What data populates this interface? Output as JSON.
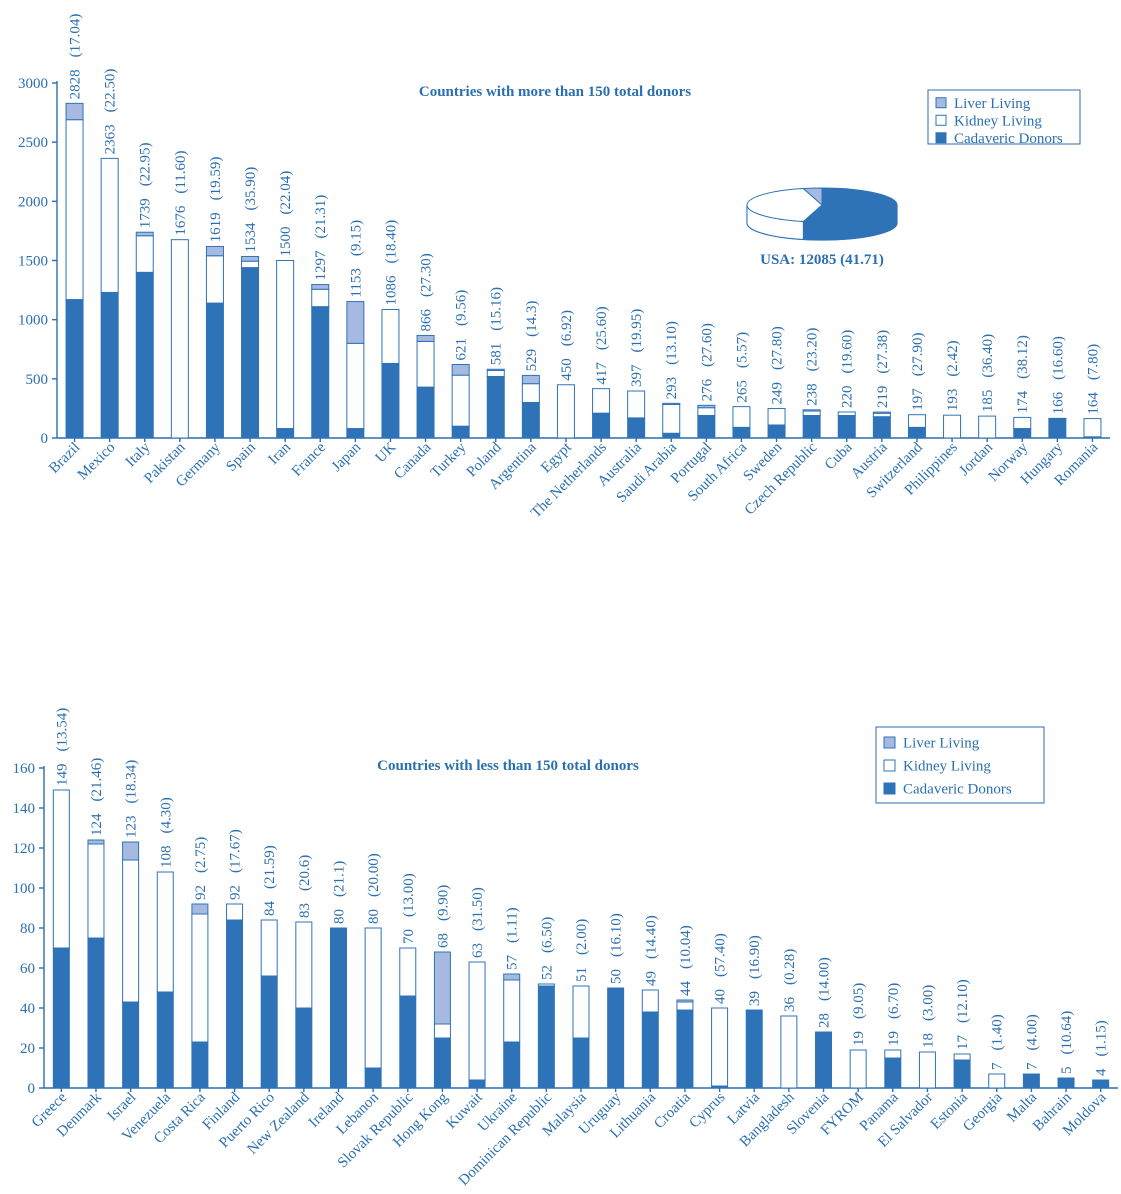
{
  "colors": {
    "cadaveric": "#2e73b8",
    "kidney": "#ffffff",
    "liver": "#a6b9e0",
    "ink": "#2a6fb0"
  },
  "chart_data": [
    {
      "type": "bar",
      "stacked": true,
      "title": "Countries with more than 150 total donors",
      "legend": [
        "Liver Living",
        "Kidney Living",
        "Cadaveric Donors"
      ],
      "legend_position": "top-right",
      "ylim": [
        0,
        3000
      ],
      "yticks": [
        0,
        500,
        1000,
        1500,
        2000,
        2500,
        3000
      ],
      "categories": [
        "Brazil",
        "Mexico",
        "Italy",
        "Pakistan",
        "Germany",
        "Spain",
        "Iran",
        "France",
        "Japan",
        "UK",
        "Canada",
        "Turkey",
        "Poland",
        "Argentina",
        "Egypt",
        "The Netherlands",
        "Australia",
        "Saudi Arabia",
        "Portugal",
        "South Africa",
        "Sweden",
        "Czech Republic",
        "Cuba",
        "Austria",
        "Switzerland",
        "Philippines",
        "Jordan",
        "Norway",
        "Hungary",
        "Romania"
      ],
      "totals": [
        "2828",
        "2363",
        "1739",
        "1676",
        "1619",
        "1534",
        "1500",
        "1297",
        "1153",
        "1086",
        "866",
        "621",
        "581",
        "529",
        "450",
        "417",
        "397",
        "293",
        "276",
        "265",
        "249",
        "238",
        "220",
        "219",
        "197",
        "193",
        "185",
        "174",
        "166",
        "164"
      ],
      "rates": [
        "(17.04)",
        "(22.50)",
        "(22.95)",
        "(11.60)",
        "(19.59)",
        "(35.90)",
        "(22.04)",
        "(21.31)",
        "(9.15)",
        "(18.40)",
        "(27.30)",
        "(9.56)",
        "(15.16)",
        "(14.3)",
        "(6.92)",
        "(25.60)",
        "(19.95)",
        "(13.10)",
        "(27.60)",
        "(5.57)",
        "(27.80)",
        "(23.20)",
        "(19.60)",
        "(27.38)",
        "(27.90)",
        "(2.42)",
        "(36.40)",
        "(38.12)",
        "(16.60)",
        "(7.80)"
      ],
      "series": [
        {
          "name": "Cadaveric Donors",
          "values": [
            1170,
            1230,
            1400,
            0,
            1140,
            1440,
            80,
            1110,
            80,
            630,
            430,
            100,
            520,
            300,
            0,
            210,
            170,
            40,
            190,
            90,
            110,
            190,
            190,
            180,
            90,
            0,
            0,
            80,
            160,
            10
          ]
        },
        {
          "name": "Kidney Living",
          "values": [
            1520,
            1133,
            309,
            1676,
            400,
            54,
            1420,
            147,
            720,
            456,
            386,
            431,
            51,
            159,
            450,
            207,
            227,
            243,
            66,
            175,
            139,
            38,
            30,
            29,
            107,
            193,
            185,
            94,
            6,
            154
          ]
        },
        {
          "name": "Liver Living",
          "values": [
            138,
            0,
            30,
            0,
            79,
            40,
            0,
            40,
            353,
            0,
            50,
            90,
            10,
            70,
            0,
            0,
            0,
            10,
            20,
            0,
            0,
            10,
            0,
            10,
            0,
            0,
            0,
            0,
            0,
            0
          ]
        }
      ],
      "inset_pie": {
        "label": "USA: 12085 (41.71)",
        "slices": [
          {
            "name": "Cadaveric Donors",
            "value": 0.54
          },
          {
            "name": "Kidney Living",
            "value": 0.42
          },
          {
            "name": "Liver Living",
            "value": 0.04
          }
        ]
      }
    },
    {
      "type": "bar",
      "stacked": true,
      "title": "Countries with less than 150 total donors",
      "legend": [
        "Liver Living",
        "Kidney Living",
        "Cadaveric Donors"
      ],
      "legend_position": "top-right",
      "ylim": [
        0,
        160
      ],
      "yticks": [
        0,
        20,
        40,
        60,
        80,
        100,
        120,
        140,
        160
      ],
      "categories": [
        "Greece",
        "Denmark",
        "Israel",
        "Venezuela",
        "Costa Rica",
        "Finland",
        "Puerto Rico",
        "New Zealand",
        "Ireland",
        "Lebanon",
        "Slovak Republic",
        "Hong Kong",
        "Kuwait",
        "Ukraine",
        "Dominican Republic",
        "Malaysia",
        "Uruguay",
        "Lithuania",
        "Croatia",
        "Cyprus",
        "Latvia",
        "Bangladesh",
        "Slovenia",
        "FYROM",
        "Panama",
        "El Salvador",
        "Estonia",
        "Georgia",
        "Malta",
        "Bahrain",
        "Moldova"
      ],
      "totals": [
        "149",
        "124",
        "123",
        "108",
        "92",
        "92",
        "84",
        "83",
        "80",
        "80",
        "70",
        "68",
        "63",
        "57",
        "52",
        "51",
        "50",
        "49",
        "44",
        "40",
        "39",
        "36",
        "28",
        "19",
        "19",
        "18",
        "17",
        "7",
        "7",
        "5",
        "4"
      ],
      "rates": [
        "(13.54)",
        "(21.46)",
        "(18.34)",
        "(4.30)",
        "(2.75)",
        "(17.67)",
        "(21.59)",
        "(20.6)",
        "(21.1)",
        "(20.00)",
        "(13.00)",
        "(9.90)",
        "(31.50)",
        "(1.11)",
        "(6.50)",
        "(2.00)",
        "(16.10)",
        "(14.40)",
        "(10.04)",
        "(57.40)",
        "(16.90)",
        "(0.28)",
        "(14.00)",
        "(9.05)",
        "(6.70)",
        "(3.00)",
        "(12.10)",
        "(1.40)",
        "(4.00)",
        "(10.64)",
        "(1.15)"
      ],
      "series": [
        {
          "name": "Cadaveric Donors",
          "values": [
            70,
            75,
            43,
            48,
            23,
            84,
            56,
            40,
            80,
            10,
            46,
            25,
            4,
            23,
            51,
            25,
            50,
            38,
            39,
            1,
            39,
            0,
            28,
            0,
            15,
            0,
            14,
            0,
            7,
            5,
            4
          ]
        },
        {
          "name": "Kidney Living",
          "values": [
            79,
            47,
            71,
            60,
            64,
            8,
            28,
            43,
            0,
            70,
            24,
            7,
            59,
            31,
            1,
            26,
            0,
            11,
            4,
            39,
            0,
            36,
            0,
            19,
            4,
            18,
            3,
            7,
            0,
            0,
            0
          ]
        },
        {
          "name": "Liver Living",
          "values": [
            0,
            2,
            9,
            0,
            5,
            0,
            0,
            0,
            0,
            0,
            0,
            36,
            0,
            3,
            0,
            0,
            0,
            0,
            1,
            0,
            0,
            0,
            0,
            0,
            0,
            0,
            0,
            0,
            0,
            0,
            0
          ]
        }
      ]
    }
  ]
}
